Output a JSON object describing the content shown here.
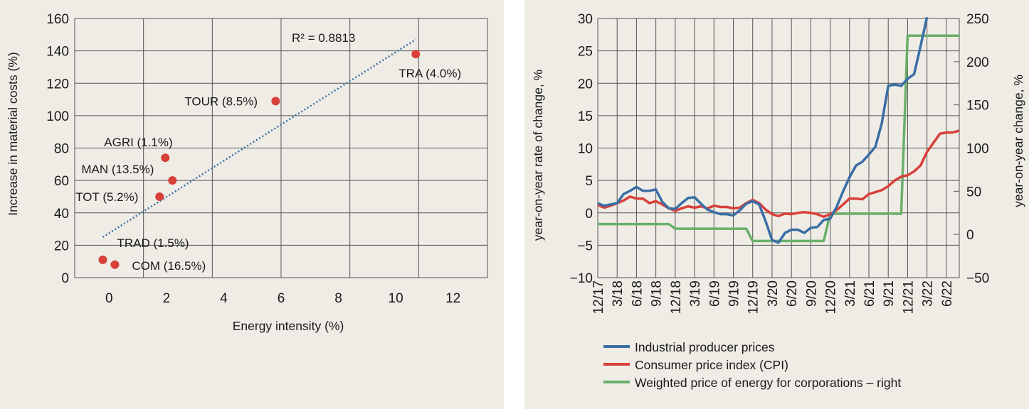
{
  "colors": {
    "panel_bg": "#efece6",
    "grid": "#555555",
    "point": "#d9403a",
    "trend": "#3a6ea5",
    "blue": "#3a6ea5",
    "red": "#d9403a",
    "green": "#6ab06a"
  },
  "chart_data": [
    {
      "type": "scatter",
      "title": "",
      "xlabel": "Energy intensity (%)",
      "ylabel": "Increase in material costs (%)",
      "xlim": [
        -1.2,
        13.2
      ],
      "ylim": [
        0,
        160
      ],
      "xticks": [
        "0",
        "2",
        "4",
        "6",
        "8",
        "10",
        "12"
      ],
      "xtick_values": [
        0,
        2,
        4,
        6,
        8,
        10,
        12
      ],
      "yticks": [
        "0",
        "20",
        "40",
        "60",
        "80",
        "100",
        "120",
        "140",
        "160"
      ],
      "ytick_values": [
        0,
        20,
        40,
        60,
        80,
        100,
        120,
        140,
        160
      ],
      "points": [
        {
          "label": "AGRI (1.1%)",
          "x": 1.96,
          "y": 74
        },
        {
          "label": "MAN (13.5%)",
          "x": 2.21,
          "y": 60
        },
        {
          "label": "TOT (5.2%)",
          "x": 1.76,
          "y": 50
        },
        {
          "label": "TOUR (8.5%)",
          "x": 5.81,
          "y": 109
        },
        {
          "label": "TRA (4.0%)",
          "x": 10.7,
          "y": 138
        },
        {
          "label": "TRAD (1.5%)",
          "x": -0.22,
          "y": 11
        },
        {
          "label": "COM (16.5%)",
          "x": 0.2,
          "y": 8
        }
      ],
      "trendline": {
        "x": [
          -0.22,
          10.7
        ],
        "y": [
          25,
          147
        ],
        "annotation": "R² = 0.8813"
      },
      "grid": true
    },
    {
      "type": "line",
      "ylabel": "year-on-year rate of change, %",
      "ylabel_right": "year-on-year change, %",
      "ylim": [
        -10,
        30
      ],
      "ylim_right": [
        -50,
        250
      ],
      "x_unit": "months since 12/17",
      "xlim": [
        0,
        56
      ],
      "xticks": [
        "12/17",
        "3/18",
        "6/18",
        "9/18",
        "12/18",
        "3/19",
        "6/19",
        "9/19",
        "12/19",
        "3/20",
        "6/20",
        "9/20",
        "12/20",
        "3/21",
        "6/21",
        "9/21",
        "12/21",
        "3/22",
        "6/22"
      ],
      "yticks": [
        "−10",
        "−5",
        "0",
        "5",
        "10",
        "15",
        "20",
        "25",
        "30"
      ],
      "ytick_values": [
        -10,
        -5,
        0,
        5,
        10,
        15,
        20,
        25,
        30
      ],
      "yticks_right": [
        "−50",
        "0",
        "50",
        "100",
        "150",
        "200",
        "250"
      ],
      "ytick_values_right": [
        -50,
        0,
        50,
        100,
        150,
        200,
        250
      ],
      "legend_position": "bottom",
      "series": [
        {
          "name": "Industrial producer prices",
          "axis": "left",
          "color_key": "blue",
          "values": [
            1.5,
            1.1,
            1.3,
            1.5,
            2.9,
            3.4,
            4.0,
            3.4,
            3.4,
            3.6,
            1.7,
            0.7,
            0.6,
            1.5,
            2.3,
            2.4,
            1.4,
            0.5,
            0.1,
            -0.2,
            -0.2,
            -0.4,
            0.4,
            1.4,
            1.8,
            1.3,
            -1.3,
            -4.2,
            -4.6,
            -3.1,
            -2.6,
            -2.6,
            -3.1,
            -2.3,
            -2.2,
            -1.1,
            -0.9,
            0.9,
            3.3,
            5.5,
            7.3,
            7.9,
            9.0,
            10.2,
            13.8,
            19.6,
            19.8,
            19.6,
            20.7,
            21.4,
            25.7,
            30.2
          ]
        },
        {
          "name": "Consumer price index (CPI)",
          "axis": "left",
          "color_key": "red",
          "values": [
            1.2,
            0.8,
            1.1,
            1.5,
            1.9,
            2.5,
            2.2,
            2.2,
            1.5,
            1.8,
            1.3,
            0.7,
            0.3,
            0.7,
            1.0,
            0.8,
            1.0,
            0.7,
            1.1,
            0.9,
            0.9,
            0.7,
            0.8,
            1.5,
            2.0,
            1.5,
            0.5,
            -0.2,
            -0.5,
            -0.1,
            -0.2,
            0.0,
            0.1,
            0.0,
            -0.2,
            -0.6,
            -0.2,
            0.4,
            1.3,
            2.2,
            2.2,
            2.1,
            2.9,
            3.2,
            3.5,
            4.1,
            5.0,
            5.6,
            5.8,
            6.4,
            7.3,
            9.4,
            10.8,
            12.2,
            12.4,
            12.4,
            12.7
          ]
        },
        {
          "name": "Weighted price of energy for corporations – right",
          "axis": "right",
          "color_key": "green",
          "values": [
            12,
            12,
            12,
            12,
            12,
            12,
            12,
            12,
            12,
            12,
            12,
            12,
            6.6,
            6.6,
            6.6,
            6.6,
            6.6,
            6.6,
            6.6,
            6.6,
            6.6,
            6.6,
            6.6,
            6.6,
            -7.6,
            -7.6,
            -7.6,
            -7.6,
            -7.6,
            -7.6,
            -7.6,
            -7.6,
            -7.6,
            -7.6,
            -7.6,
            -7.6,
            24,
            24,
            24,
            24,
            24,
            24,
            24,
            24,
            24,
            24,
            24,
            24,
            230,
            230,
            230,
            230,
            230,
            230,
            230,
            230,
            230
          ]
        }
      ]
    }
  ]
}
